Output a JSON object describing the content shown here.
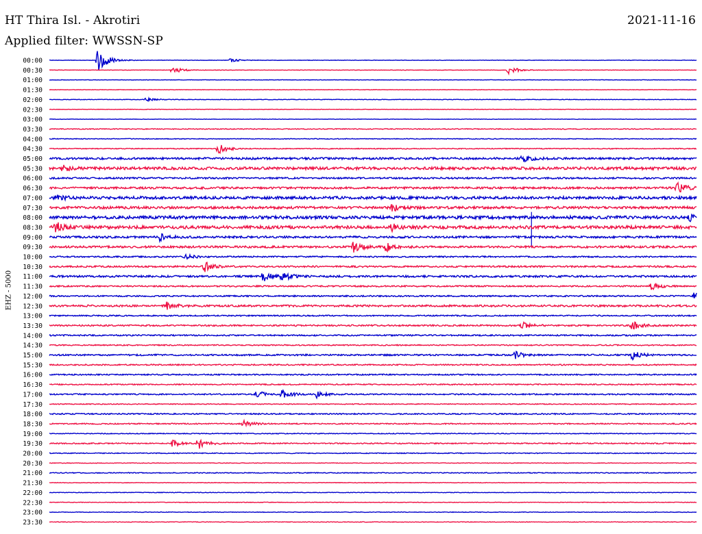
{
  "header": {
    "station": "HT Thira Isl. - Akrotiri",
    "date": "2021-11-16",
    "filter": "Applied filter: WWSSN-SP"
  },
  "chart_data": {
    "type": "line",
    "title": "HT Thira Isl. - Akrotiri",
    "subtitle": "Applied filter: WWSSN-SP",
    "ylabel": "EHZ - 5000",
    "colors": [
      "#0000cc",
      "#ee1144"
    ],
    "rows": [
      "00:00",
      "00:30",
      "01:00",
      "01:30",
      "02:00",
      "02:30",
      "03:00",
      "03:30",
      "04:00",
      "04:30",
      "05:00",
      "05:30",
      "06:00",
      "06:30",
      "07:00",
      "07:30",
      "08:00",
      "08:30",
      "09:00",
      "09:30",
      "10:00",
      "10:30",
      "11:00",
      "11:30",
      "12:00",
      "12:30",
      "13:00",
      "13:30",
      "14:00",
      "14:30",
      "15:00",
      "15:30",
      "16:00",
      "16:30",
      "17:00",
      "17:30",
      "18:00",
      "18:30",
      "19:00",
      "19:30",
      "20:00",
      "20:30",
      "21:00",
      "21:30",
      "22:00",
      "22:30",
      "23:00",
      "23:30"
    ],
    "noise": [
      0.3,
      0.3,
      0.3,
      0.3,
      0.4,
      0.3,
      0.3,
      0.6,
      0.5,
      0.6,
      1.5,
      2.0,
      1.2,
      1.5,
      2.0,
      1.8,
      2.2,
      2.2,
      1.5,
      1.5,
      1.0,
      1.2,
      1.4,
      1.0,
      1.0,
      1.4,
      0.9,
      1.1,
      1.0,
      0.8,
      1.1,
      0.9,
      0.9,
      0.8,
      0.9,
      0.6,
      0.9,
      0.8,
      0.6,
      0.8,
      0.6,
      0.4,
      0.6,
      0.4,
      0.4,
      0.4,
      0.4,
      0.4
    ],
    "events": [
      {
        "row": "00:00",
        "t": 0.075,
        "amp": 22
      },
      {
        "row": "00:00",
        "t": 0.28,
        "amp": 3
      },
      {
        "row": "00:30",
        "t": 0.19,
        "amp": 6
      },
      {
        "row": "00:30",
        "t": 0.71,
        "amp": 6
      },
      {
        "row": "02:00",
        "t": 0.15,
        "amp": 2.5
      },
      {
        "row": "04:30",
        "t": 0.26,
        "amp": 8
      },
      {
        "row": "05:00",
        "t": 0.73,
        "amp": 6
      },
      {
        "row": "05:30",
        "t": 0.02,
        "amp": 5
      },
      {
        "row": "06:30",
        "t": 0.97,
        "amp": 8
      },
      {
        "row": "07:00",
        "t": 0.01,
        "amp": 4
      },
      {
        "row": "07:30",
        "t": 0.53,
        "amp": 5
      },
      {
        "row": "08:00",
        "t": 0.99,
        "amp": 5
      },
      {
        "row": "08:30",
        "t": 0.01,
        "amp": 7
      },
      {
        "row": "08:30",
        "t": 0.53,
        "amp": 6
      },
      {
        "row": "09:00",
        "t": 0.17,
        "amp": 5
      },
      {
        "row": "09:30",
        "t": 0.47,
        "amp": 7
      },
      {
        "row": "09:30",
        "t": 0.52,
        "amp": 6
      },
      {
        "row": "10:00",
        "t": 0.21,
        "amp": 4
      },
      {
        "row": "10:30",
        "t": 0.24,
        "amp": 7
      },
      {
        "row": "11:00",
        "t": 0.33,
        "amp": 7
      },
      {
        "row": "11:00",
        "t": 0.36,
        "amp": 6
      },
      {
        "row": "11:30",
        "t": 0.93,
        "amp": 5
      },
      {
        "row": "12:00",
        "t": 0.995,
        "amp": 6
      },
      {
        "row": "12:30",
        "t": 0.18,
        "amp": 7
      },
      {
        "row": "13:30",
        "t": 0.73,
        "amp": 5
      },
      {
        "row": "13:30",
        "t": 0.9,
        "amp": 7
      },
      {
        "row": "15:00",
        "t": 0.72,
        "amp": 5
      },
      {
        "row": "15:00",
        "t": 0.9,
        "amp": 7
      },
      {
        "row": "17:00",
        "t": 0.32,
        "amp": 5
      },
      {
        "row": "17:00",
        "t": 0.36,
        "amp": 7
      },
      {
        "row": "17:00",
        "t": 0.41,
        "amp": 6
      },
      {
        "row": "18:30",
        "t": 0.3,
        "amp": 5
      },
      {
        "row": "19:30",
        "t": 0.19,
        "amp": 5
      },
      {
        "row": "19:30",
        "t": 0.23,
        "amp": 8
      }
    ],
    "spikes": [
      {
        "row": "08:00",
        "t": 0.745,
        "amp": 44
      }
    ]
  }
}
